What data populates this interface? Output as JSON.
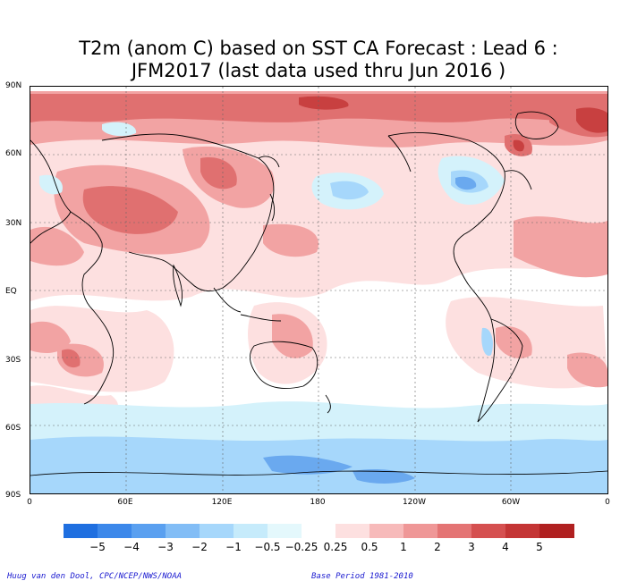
{
  "title_line1": "T2m (anom C) based on SST CA Forecast : Lead 6 :",
  "title_line2": "JFM2017 (last data used thru Jun 2016 )",
  "lat_labels": [
    "90N",
    "60N",
    "30N",
    "EQ",
    "30S",
    "60S",
    "90S"
  ],
  "lon_labels": [
    "0",
    "60E",
    "120E",
    "180",
    "120W",
    "60W",
    "0"
  ],
  "colorbar": {
    "labels": [
      "−5",
      "−4",
      "−3",
      "−2",
      "−1",
      "−0.5",
      "−0.25",
      "0.25",
      "0.5",
      "1",
      "2",
      "3",
      "4",
      "5"
    ],
    "colors": [
      "#1f6fe0",
      "#3c88ea",
      "#5aa0f0",
      "#82bdf6",
      "#a6d7fb",
      "#c6ebfb",
      "#e4f8fc",
      "#ffffff",
      "#fde0e0",
      "#f7baba",
      "#ef9797",
      "#e47474",
      "#d55050",
      "#c43535",
      "#b02020"
    ]
  },
  "credit_left": "Huug van den Dool, CPC/NCEP/NWS/NOAA",
  "credit_right": "Base Period 1981-2010",
  "colors": {
    "warm_light": "#fde0e0",
    "warm_mid": "#f2a3a3",
    "warm_strong": "#e07070",
    "warm_deep": "#c84040",
    "cool_light": "#d4f2fb",
    "cool_mid": "#a6d7fb",
    "cool_strong": "#6aa9ef",
    "coast": "#000000",
    "grid": "#666666"
  }
}
